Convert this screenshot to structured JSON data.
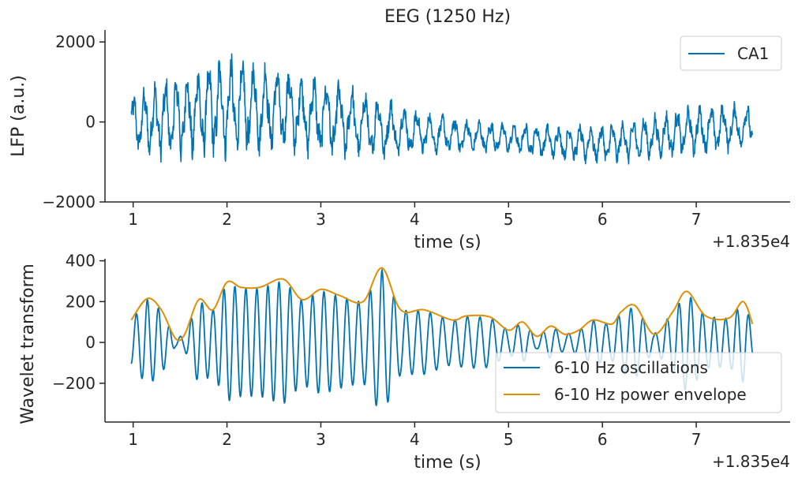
{
  "chart_data": [
    {
      "type": "line",
      "title": "EEG (1250 Hz)",
      "xlabel": "time (s)",
      "ylabel": "LFP (a.u.)",
      "x_offset_label": "+1.835e4",
      "xlim": [
        0.7,
        8.0
      ],
      "ylim": [
        -2000,
        2300
      ],
      "xticks": [
        1,
        2,
        3,
        4,
        5,
        6,
        7
      ],
      "xtick_labels": [
        "1",
        "2",
        "3",
        "4",
        "5",
        "6",
        "7"
      ],
      "yticks": [
        -2000,
        0,
        2000
      ],
      "ytick_labels": [
        "−2000",
        "0",
        "2000"
      ],
      "grid": false,
      "legend_position": "upper right",
      "series": [
        {
          "name": "CA1",
          "color": "#0173b2",
          "x_range": [
            0.98,
            7.6
          ],
          "theta_hz": 8,
          "trend": [
            [
              0.98,
              -50
            ],
            [
              1.5,
              150
            ],
            [
              2.0,
              400
            ],
            [
              2.5,
              350
            ],
            [
              3.0,
              150
            ],
            [
              3.5,
              -100
            ],
            [
              4.0,
              -250
            ],
            [
              4.5,
              -350
            ],
            [
              5.0,
              -400
            ],
            [
              5.5,
              -500
            ],
            [
              6.0,
              -550
            ],
            [
              6.5,
              -400
            ],
            [
              7.0,
              -200
            ],
            [
              7.6,
              -100
            ]
          ],
          "amplitude": [
            [
              0.98,
              600
            ],
            [
              1.5,
              900
            ],
            [
              2.0,
              1000
            ],
            [
              2.5,
              900
            ],
            [
              3.0,
              800
            ],
            [
              3.5,
              700
            ],
            [
              4.0,
              450
            ],
            [
              4.5,
              350
            ],
            [
              5.0,
              300
            ],
            [
              5.5,
              350
            ],
            [
              6.0,
              400
            ],
            [
              6.5,
              450
            ],
            [
              7.0,
              500
            ],
            [
              7.6,
              450
            ]
          ]
        }
      ]
    },
    {
      "type": "line",
      "xlabel": "time (s)",
      "ylabel": "Wavelet transform",
      "x_offset_label": "+1.835e4",
      "xlim": [
        0.7,
        8.0
      ],
      "ylim": [
        -390,
        410
      ],
      "xticks": [
        1,
        2,
        3,
        4,
        5,
        6,
        7
      ],
      "xtick_labels": [
        "1",
        "2",
        "3",
        "4",
        "5",
        "6",
        "7"
      ],
      "yticks": [
        -200,
        0,
        200,
        400
      ],
      "ytick_labels": [
        "−200",
        "0",
        "200",
        "400"
      ],
      "grid": false,
      "legend_position": "lower right",
      "series": [
        {
          "name": "6-10 Hz oscillations",
          "color": "#0173b2",
          "theta_hz": 8,
          "x_range": [
            0.98,
            7.6
          ]
        },
        {
          "name": "6-10 Hz power envelope",
          "color": "#de8f05",
          "envelope": [
            [
              0.98,
              110
            ],
            [
              1.15,
              215
            ],
            [
              1.3,
              160
            ],
            [
              1.45,
              20
            ],
            [
              1.55,
              40
            ],
            [
              1.7,
              210
            ],
            [
              1.85,
              160
            ],
            [
              2.0,
              295
            ],
            [
              2.15,
              270
            ],
            [
              2.35,
              270
            ],
            [
              2.6,
              310
            ],
            [
              2.8,
              210
            ],
            [
              3.0,
              260
            ],
            [
              3.2,
              230
            ],
            [
              3.45,
              200
            ],
            [
              3.65,
              365
            ],
            [
              3.85,
              160
            ],
            [
              4.1,
              160
            ],
            [
              4.4,
              110
            ],
            [
              4.55,
              130
            ],
            [
              4.8,
              125
            ],
            [
              5.0,
              60
            ],
            [
              5.15,
              100
            ],
            [
              5.3,
              30
            ],
            [
              5.45,
              80
            ],
            [
              5.6,
              40
            ],
            [
              5.75,
              60
            ],
            [
              5.9,
              110
            ],
            [
              6.1,
              90
            ],
            [
              6.2,
              150
            ],
            [
              6.35,
              180
            ],
            [
              6.55,
              40
            ],
            [
              6.75,
              150
            ],
            [
              6.9,
              250
            ],
            [
              7.1,
              130
            ],
            [
              7.35,
              120
            ],
            [
              7.5,
              200
            ],
            [
              7.6,
              90
            ]
          ]
        }
      ]
    }
  ]
}
